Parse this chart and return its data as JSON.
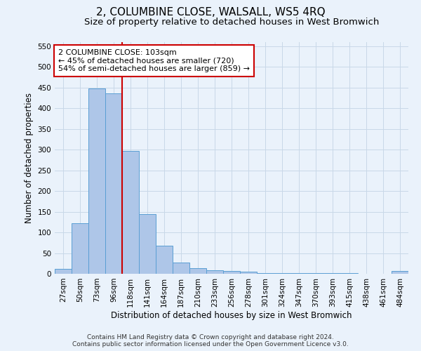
{
  "title": "2, COLUMBINE CLOSE, WALSALL, WS5 4RQ",
  "subtitle": "Size of property relative to detached houses in West Bromwich",
  "xlabel": "Distribution of detached houses by size in West Bromwich",
  "ylabel": "Number of detached properties",
  "footer_line1": "Contains HM Land Registry data © Crown copyright and database right 2024.",
  "footer_line2": "Contains public sector information licensed under the Open Government Licence v3.0.",
  "categories": [
    "27sqm",
    "50sqm",
    "73sqm",
    "96sqm",
    "118sqm",
    "141sqm",
    "164sqm",
    "187sqm",
    "210sqm",
    "233sqm",
    "256sqm",
    "278sqm",
    "301sqm",
    "324sqm",
    "347sqm",
    "370sqm",
    "393sqm",
    "415sqm",
    "438sqm",
    "461sqm",
    "484sqm"
  ],
  "values": [
    12,
    123,
    448,
    436,
    297,
    145,
    68,
    27,
    14,
    9,
    6,
    5,
    2,
    1,
    1,
    1,
    1,
    1,
    0,
    0,
    6
  ],
  "bar_color": "#aec6e8",
  "bar_edge_color": "#5a9fd4",
  "ylim": [
    0,
    560
  ],
  "yticks": [
    0,
    50,
    100,
    150,
    200,
    250,
    300,
    350,
    400,
    450,
    500,
    550
  ],
  "annotation_line1": "2 COLUMBINE CLOSE: 103sqm",
  "annotation_line2": "← 45% of detached houses are smaller (720)",
  "annotation_line3": "54% of semi-detached houses are larger (859) →",
  "vline_x_index": 3.5,
  "annotation_box_color": "#ffffff",
  "annotation_box_edge_color": "#cc0000",
  "vline_color": "#cc0000",
  "grid_color": "#c8d8e8",
  "background_color": "#eaf2fb",
  "title_fontsize": 11,
  "subtitle_fontsize": 9.5,
  "ylabel_fontsize": 8.5,
  "xlabel_fontsize": 8.5,
  "tick_fontsize": 7.5,
  "annotation_fontsize": 8,
  "footer_fontsize": 6.5
}
